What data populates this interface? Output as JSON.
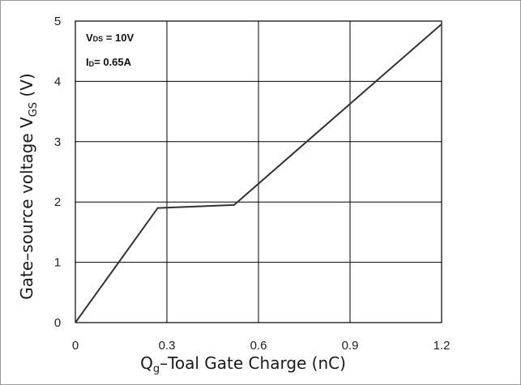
{
  "chart_data": {
    "type": "line",
    "x": [
      0,
      0.27,
      0.52,
      1.2
    ],
    "y": [
      0,
      1.9,
      1.95,
      4.95
    ],
    "xlim": [
      0,
      1.2
    ],
    "ylim": [
      0,
      5
    ],
    "xticks": [
      "0",
      "0.3",
      "0.6",
      "0.9",
      "1.2"
    ],
    "yticks": [
      "0",
      "1",
      "2",
      "3",
      "4",
      "5"
    ],
    "xlabel": {
      "main": "Q",
      "sub": "g",
      "rest": "–Toal Gate Charge  (nC)"
    },
    "ylabel": {
      "main": "Gate–source voltage V",
      "sub": "GS",
      "rest": " (V)"
    },
    "grid": true,
    "conditions": [
      {
        "pre": "V",
        "sub": "DS",
        "post": " = 10V"
      },
      {
        "pre": "I",
        "sub": "D",
        "post": "= 0.65A"
      }
    ]
  }
}
